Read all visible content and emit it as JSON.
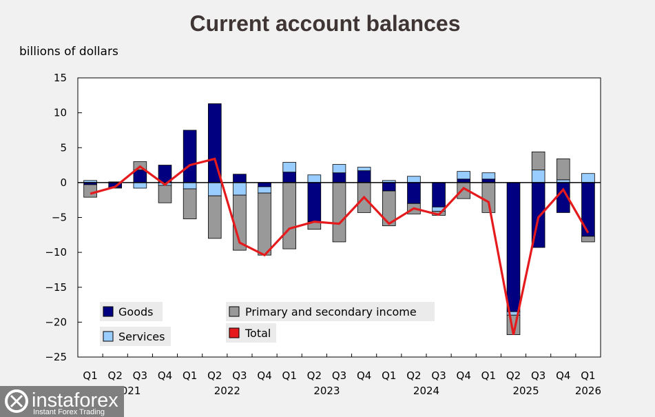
{
  "chart_data": {
    "type": "bar",
    "title": "Current account balances",
    "ylabel": "billions of dollars",
    "ylim": [
      -25,
      15
    ],
    "yticks": [
      15,
      10,
      5,
      0,
      -5,
      -10,
      -15,
      -20,
      -25
    ],
    "stacked": true,
    "quarters": [
      "Q1",
      "Q2",
      "Q3",
      "Q4",
      "Q1",
      "Q2",
      "Q3",
      "Q4",
      "Q1",
      "Q2",
      "Q3",
      "Q4",
      "Q1",
      "Q2",
      "Q3",
      "Q4",
      "Q1",
      "Q2",
      "Q3",
      "Q4",
      "Q1"
    ],
    "years": [
      {
        "label": "2021",
        "first": 0,
        "last": 3
      },
      {
        "label": "2022",
        "first": 4,
        "last": 7
      },
      {
        "label": "2023",
        "first": 8,
        "last": 11
      },
      {
        "label": "2024",
        "first": 12,
        "last": 15
      },
      {
        "label": "2025",
        "first": 16,
        "last": 19
      },
      {
        "label": "2026",
        "first": 20,
        "last": 20
      }
    ],
    "series": [
      {
        "name": "Goods",
        "color": "#000080",
        "values": [
          -0.3,
          -0.7,
          1.8,
          2.5,
          7.5,
          11.3,
          1.2,
          -0.6,
          1.5,
          -5.6,
          1.4,
          1.7,
          -1.2,
          -3.0,
          -3.5,
          0.5,
          0.5,
          -18.5,
          -9.3,
          -4.3,
          -7.7
        ]
      },
      {
        "name": "Services",
        "color": "#99ccff",
        "values": [
          0.3,
          -0.1,
          -0.8,
          -0.4,
          -0.9,
          -1.9,
          -1.8,
          -0.9,
          1.4,
          1.1,
          1.2,
          0.5,
          0.3,
          0.9,
          -0.6,
          1.1,
          0.9,
          -0.5,
          1.8,
          0.4,
          1.3
        ]
      },
      {
        "name": "Primary and secondary income",
        "color": "#999999",
        "values": [
          -1.8,
          0.1,
          1.2,
          -2.5,
          -4.3,
          -6.1,
          -7.9,
          -8.9,
          -9.5,
          -1.1,
          -8.5,
          -4.3,
          -5.0,
          -1.5,
          -0.6,
          -2.3,
          -4.3,
          -2.8,
          2.6,
          3.0,
          -0.8
        ]
      },
      {
        "name": "Total",
        "color": "#e41a1c",
        "type": "line",
        "values": [
          -1.6,
          -0.6,
          2.3,
          -0.3,
          2.5,
          3.4,
          -8.6,
          -10.4,
          -6.6,
          -5.6,
          -5.9,
          -2.1,
          -5.9,
          -3.7,
          -4.6,
          -0.8,
          -2.8,
          -21.8,
          -5.0,
          -1.0,
          -7.2
        ]
      }
    ],
    "legend": [
      "Goods",
      "Services",
      "Primary and secondary income",
      "Total"
    ]
  },
  "watermark": {
    "brand": "instaforex",
    "tagline": "Instant Forex Trading"
  }
}
